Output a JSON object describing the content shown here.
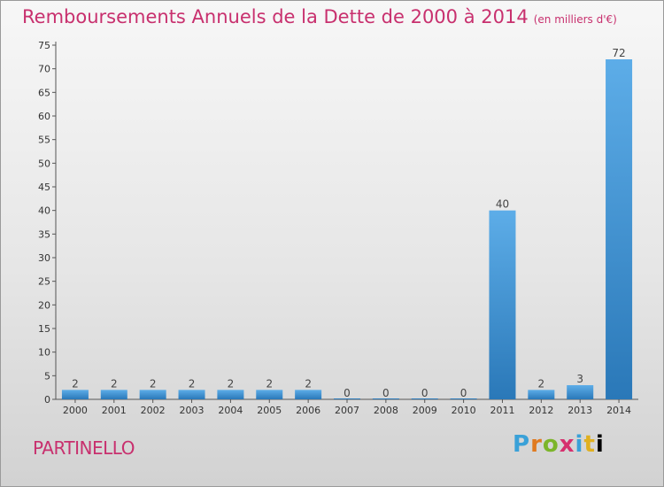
{
  "header": {
    "title": "Remboursements Annuels de la Dette de 2000 à 2014",
    "subtitle": "(en milliers d'€)"
  },
  "footer": {
    "commune": "PARTINELLO",
    "logo_letters": [
      "P",
      "r",
      "o",
      "x",
      "i",
      "t",
      "i"
    ]
  },
  "colors": {
    "bar_light": "#5dade8",
    "bar_dark": "#2a78b8",
    "title": "#c8306e"
  },
  "chart_data": {
    "type": "bar",
    "categories": [
      "2000",
      "2001",
      "2002",
      "2003",
      "2004",
      "2005",
      "2006",
      "2007",
      "2008",
      "2009",
      "2010",
      "2011",
      "2012",
      "2013",
      "2014"
    ],
    "values": [
      2,
      2,
      2,
      2,
      2,
      2,
      2,
      0,
      0,
      0,
      0,
      40,
      2,
      3,
      72
    ],
    "data_labels": [
      "2",
      "2",
      "2",
      "2",
      "2",
      "2",
      "2",
      "0",
      "0",
      "0",
      "0",
      "40",
      "2",
      "3",
      "72"
    ],
    "yticks": [
      0,
      5,
      10,
      15,
      20,
      25,
      30,
      35,
      40,
      45,
      50,
      55,
      60,
      65,
      70,
      75
    ],
    "ylim": [
      0,
      75
    ],
    "grid": false
  }
}
